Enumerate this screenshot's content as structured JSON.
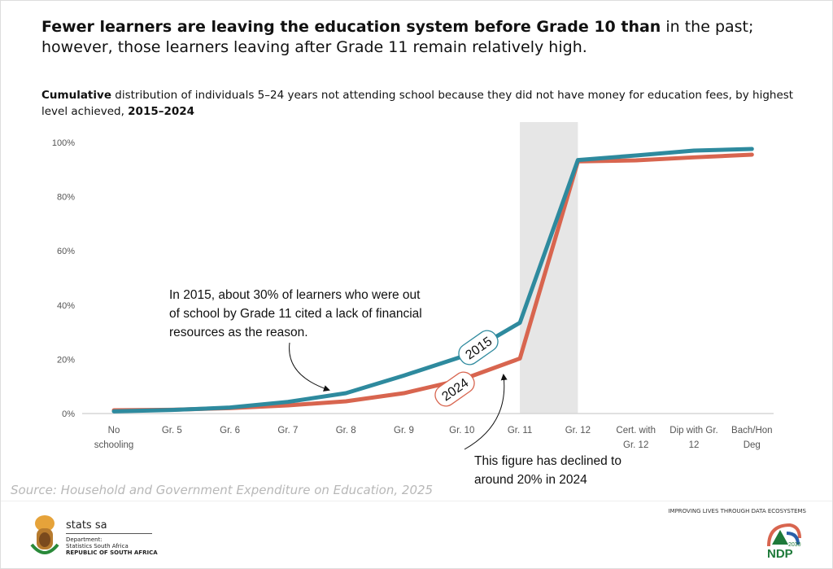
{
  "headline": {
    "bold": "Fewer learners are leaving the education system before Grade 10 than",
    "rest": " in the past; however, those learners leaving after Grade 11 remain relatively high."
  },
  "subtitle": {
    "bold1": "Cumulative",
    "middle": "  distribution of individuals 5–24 years not attending school because they did not have money for education fees, by highest level achieved, ",
    "bold2": "2015–2024"
  },
  "chart_data": {
    "type": "line",
    "categories": [
      "No schooling",
      "Gr. 5",
      "Gr. 6",
      "Gr. 7",
      "Gr. 8",
      "Gr. 9",
      "Gr. 10",
      "Gr. 11",
      "Gr. 12",
      "Cert. with Gr. 12",
      "Dip with Gr. 12",
      "Bach/Hon Deg"
    ],
    "category_lines": [
      [
        "No",
        "schooling"
      ],
      [
        "Gr. 5"
      ],
      [
        "Gr. 6"
      ],
      [
        "Gr. 7"
      ],
      [
        "Gr. 8"
      ],
      [
        "Gr. 9"
      ],
      [
        "Gr. 10"
      ],
      [
        "Gr. 11"
      ],
      [
        "Gr. 12"
      ],
      [
        "Cert. with",
        "Gr. 12"
      ],
      [
        "Dip with Gr.",
        "12"
      ],
      [
        "Bach/Hon",
        "Deg"
      ]
    ],
    "series": [
      {
        "name": "2015",
        "color": "#2e8a9e",
        "values": [
          0.8,
          1.3,
          2.2,
          4.3,
          7.5,
          14,
          21,
          33.5,
          93.5,
          95.2,
          97,
          97.6
        ]
      },
      {
        "name": "2024",
        "color": "#d8654f",
        "values": [
          1.2,
          1.4,
          2.0,
          3.0,
          4.5,
          7.5,
          12.5,
          20.3,
          93,
          93.4,
          94.5,
          95.5
        ]
      }
    ],
    "ylim": [
      0,
      100
    ],
    "yticks": [
      "0%",
      "20%",
      "40%",
      "60%",
      "80%",
      "100%"
    ],
    "highlight_band": [
      "Gr. 11",
      "Gr. 12"
    ],
    "annotations": [
      "In 2015, about 30% of learners who were out of school by Grade 11 cited a lack of financial resources as the reason.",
      "This figure has declined to around 20% in 2024"
    ]
  },
  "source": "Source: Household and Government Expenditure on Education, 2025",
  "footer": {
    "brand": "stats sa",
    "dept": "Department:",
    "dept2": "Statistics South Africa",
    "country": "REPUBLIC OF SOUTH AFRICA",
    "tagline": "IMPROVING LIVES THROUGH DATA ECOSYSTEMS",
    "ndp": "NDP",
    "ndp_year": "2030"
  }
}
